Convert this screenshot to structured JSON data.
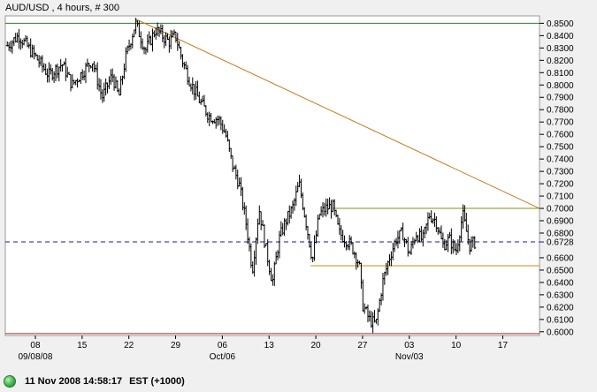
{
  "chart_data": {
    "type": "ohlc",
    "title": "AUD/USD , 4 hours, # 300",
    "ylim": [
      0.597,
      0.856
    ],
    "y_ticks": [
      "0.8500",
      "0.8400",
      "0.8300",
      "0.8200",
      "0.8100",
      "0.8000",
      "0.7900",
      "0.7800",
      "0.7700",
      "0.7600",
      "0.7500",
      "0.7400",
      "0.7300",
      "0.7200",
      "0.7100",
      "0.7000",
      "0.6900",
      "0.6800",
      "0.6600",
      "0.6500",
      "0.6400",
      "0.6300",
      "0.6200",
      "0.6100",
      "0.6000"
    ],
    "x_days": [
      {
        "label": "08",
        "sub": "09/08/08",
        "x": 0
      },
      {
        "label": "15",
        "sub": "",
        "x": 7
      },
      {
        "label": "22",
        "sub": "",
        "x": 14
      },
      {
        "label": "29",
        "sub": "",
        "x": 21
      },
      {
        "label": "06",
        "sub": "Oct/06",
        "x": 28
      },
      {
        "label": "13",
        "sub": "",
        "x": 35
      },
      {
        "label": "20",
        "sub": "",
        "x": 42
      },
      {
        "label": "27",
        "sub": "",
        "x": 49
      },
      {
        "label": "03",
        "sub": "Nov/03",
        "x": 56
      },
      {
        "label": "10",
        "sub": "",
        "x": 63
      },
      {
        "label": "17",
        "sub": "",
        "x": 70
      }
    ],
    "xlim": [
      -4.5,
      75.5
    ],
    "current_price": {
      "label": "0.6728",
      "value": 0.6728
    },
    "levels": [
      {
        "value": 0.85,
        "x0": -4.5,
        "x1": 75.5,
        "color": "#2e7d32"
      },
      {
        "value": 0.5985,
        "x0": -4.5,
        "x1": 75.5,
        "color": "#c62828"
      },
      {
        "value": 0.7,
        "x0": 44.6,
        "x1": 75.5,
        "color": "#7a9a1a"
      },
      {
        "value": 0.6535,
        "x0": 41.2,
        "x1": 75.5,
        "color": "#d08a10"
      }
    ],
    "trendline": {
      "x0": 15.0,
      "y0": 0.8535,
      "x1": 75.5,
      "y1": 0.7,
      "color": "#c87a1a"
    },
    "keypoints": [
      [
        -4.2,
        0.832
      ],
      [
        -2.5,
        0.84
      ],
      [
        0,
        0.823
      ],
      [
        2,
        0.808
      ],
      [
        4,
        0.817
      ],
      [
        5.5,
        0.8
      ],
      [
        7,
        0.81
      ],
      [
        8.5,
        0.82
      ],
      [
        10,
        0.79
      ],
      [
        11.5,
        0.808
      ],
      [
        12.5,
        0.79
      ],
      [
        13.5,
        0.822
      ],
      [
        15,
        0.85
      ],
      [
        16.5,
        0.828
      ],
      [
        18,
        0.845
      ],
      [
        20,
        0.835
      ],
      [
        21,
        0.84
      ],
      [
        22,
        0.82
      ],
      [
        23,
        0.805
      ],
      [
        24.5,
        0.788
      ],
      [
        26,
        0.775
      ],
      [
        27.5,
        0.772
      ],
      [
        28.5,
        0.76
      ],
      [
        29.5,
        0.735
      ],
      [
        30.5,
        0.72
      ],
      [
        31.5,
        0.69
      ],
      [
        32.5,
        0.65
      ],
      [
        33.5,
        0.7
      ],
      [
        34.5,
        0.668
      ],
      [
        35.5,
        0.64
      ],
      [
        36.5,
        0.675
      ],
      [
        37.5,
        0.69
      ],
      [
        38.5,
        0.7
      ],
      [
        39.5,
        0.72
      ],
      [
        40.5,
        0.69
      ],
      [
        41.5,
        0.658
      ],
      [
        42.5,
        0.695
      ],
      [
        43.5,
        0.7
      ],
      [
        44.5,
        0.702
      ],
      [
        45.5,
        0.68
      ],
      [
        46.5,
        0.675
      ],
      [
        47.5,
        0.668
      ],
      [
        48.5,
        0.655
      ],
      [
        49,
        0.622
      ],
      [
        50,
        0.61
      ],
      [
        51,
        0.606
      ],
      [
        52,
        0.64
      ],
      [
        53,
        0.66
      ],
      [
        54,
        0.675
      ],
      [
        55,
        0.68
      ],
      [
        56,
        0.663
      ],
      [
        57,
        0.68
      ],
      [
        58,
        0.674
      ],
      [
        59,
        0.695
      ],
      [
        60,
        0.69
      ],
      [
        61,
        0.67
      ],
      [
        62,
        0.675
      ],
      [
        63,
        0.665
      ],
      [
        64,
        0.695
      ],
      [
        65,
        0.67
      ],
      [
        66,
        0.6728
      ]
    ]
  },
  "status": {
    "timestamp": "11 Nov 2008 14:58:17",
    "zone": "EST (+1000)"
  }
}
